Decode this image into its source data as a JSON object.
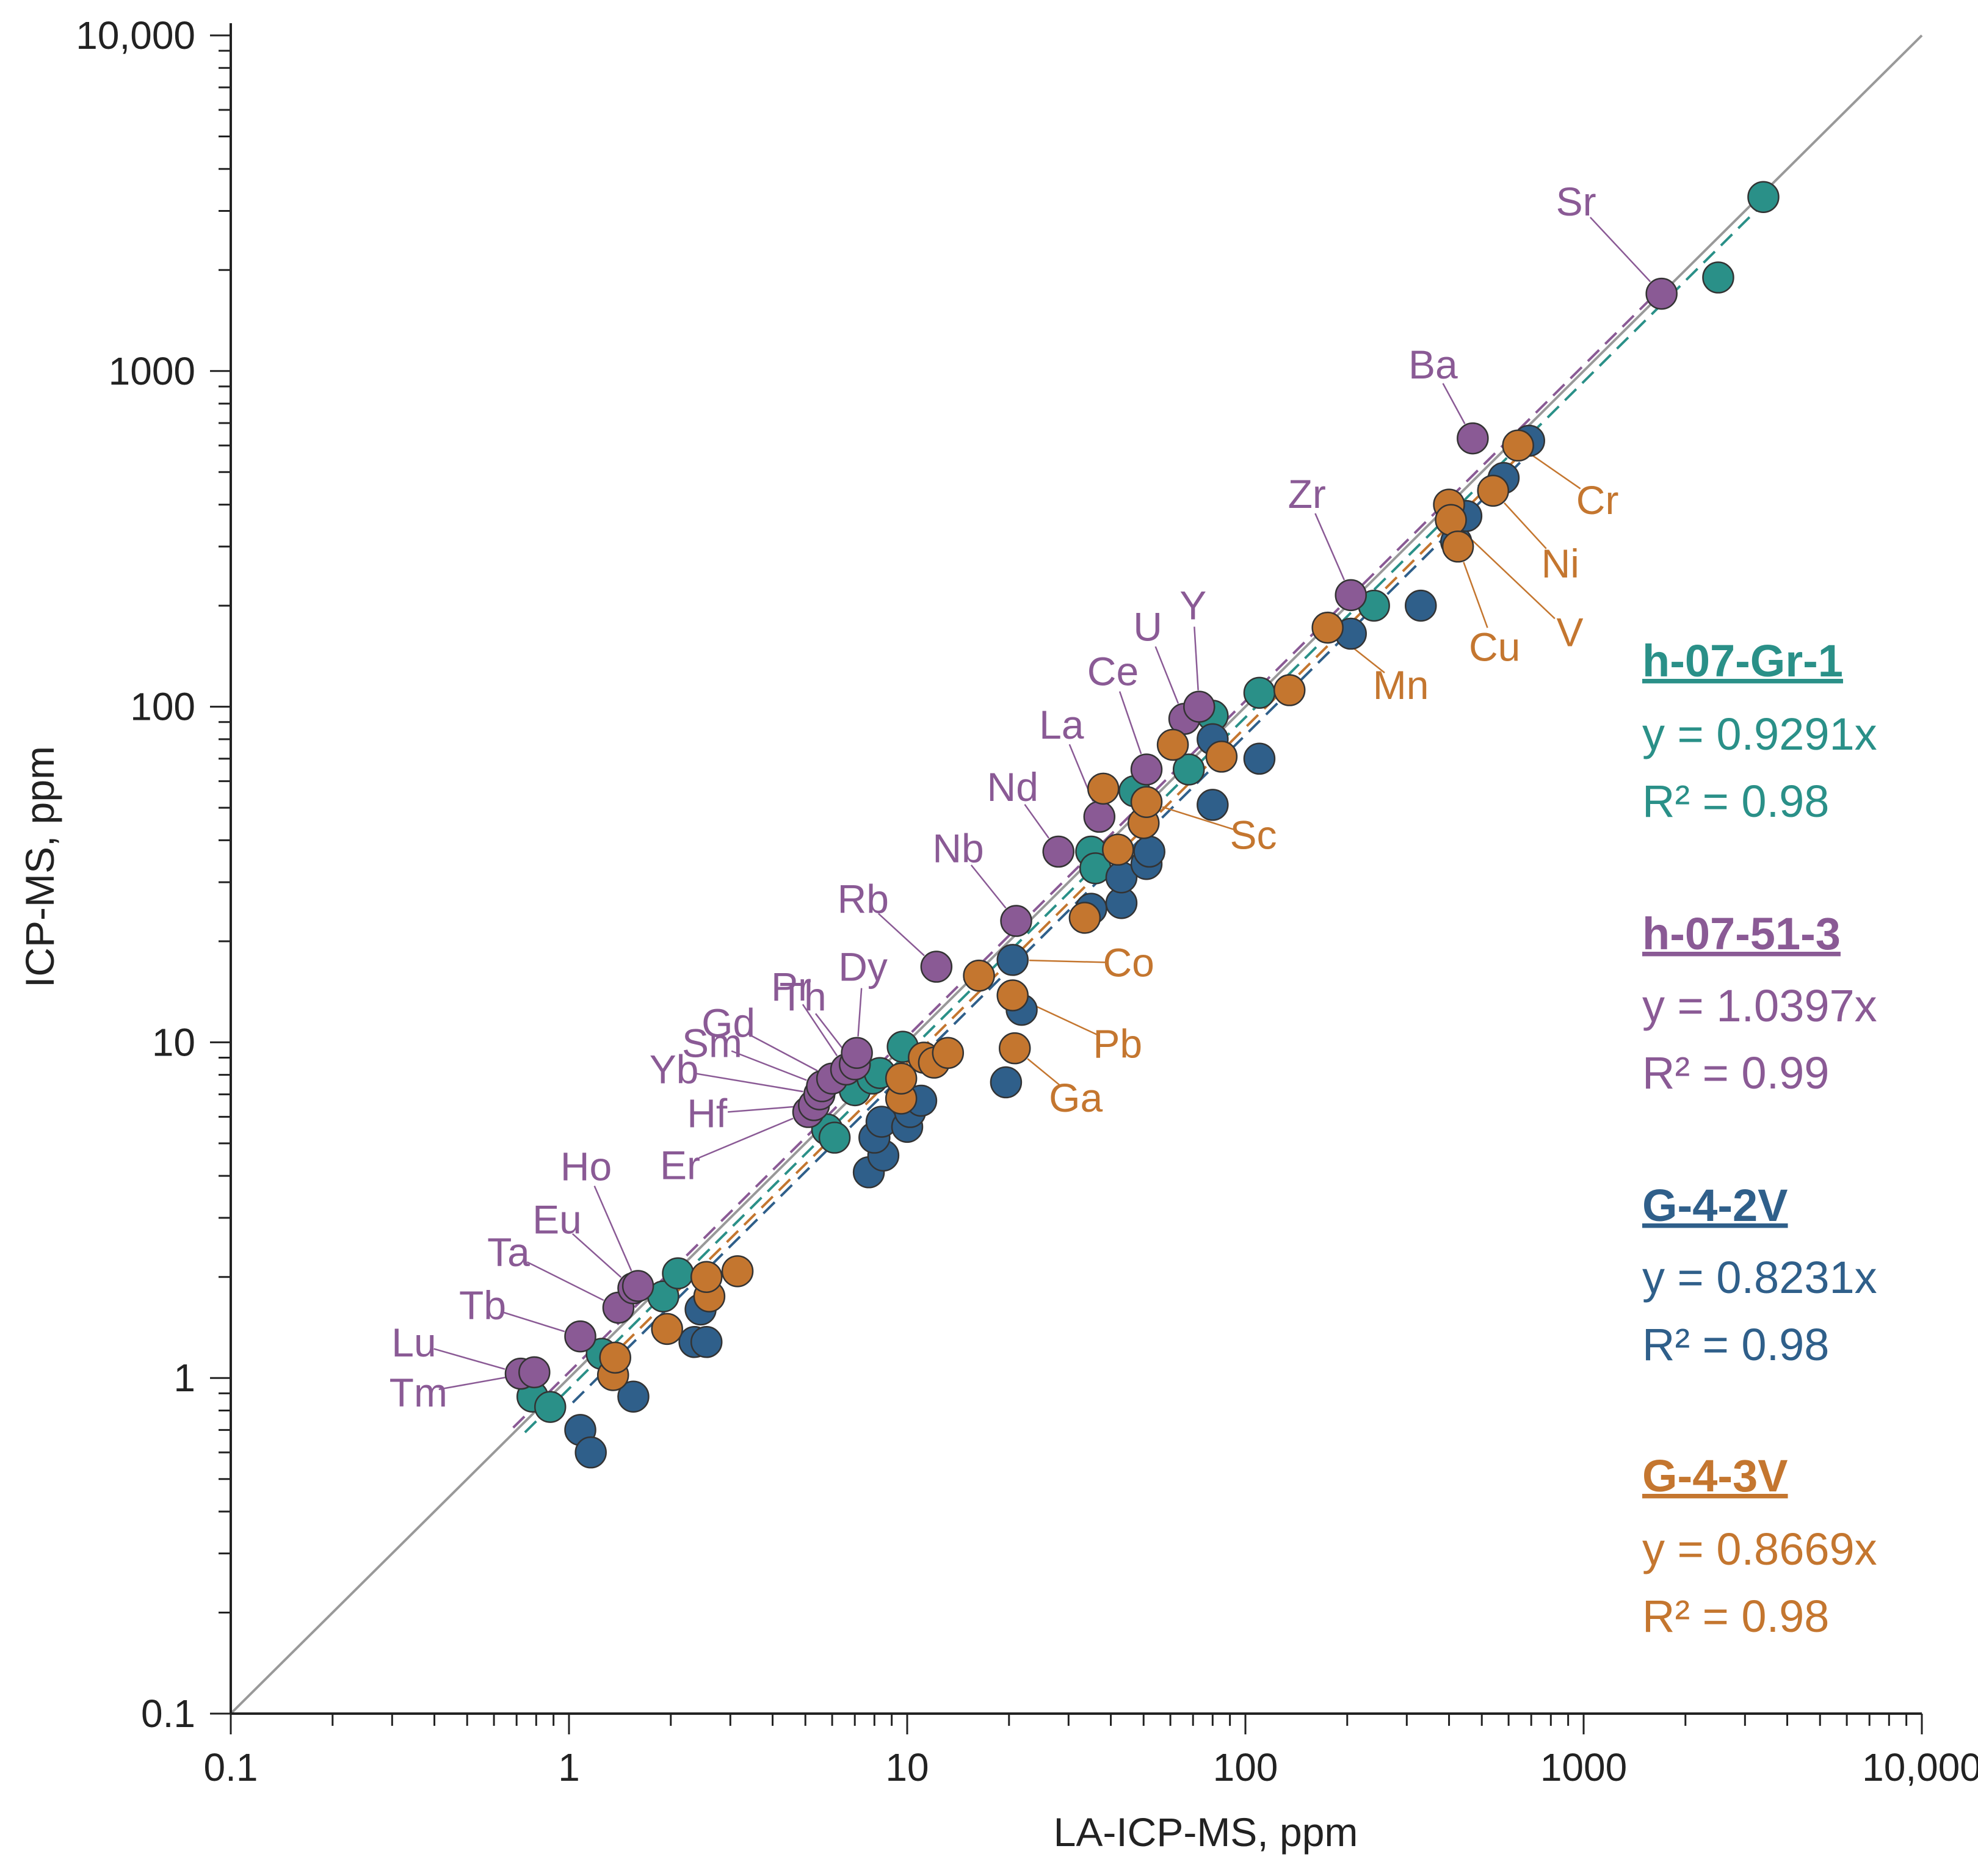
{
  "chart_data": {
    "type": "scatter",
    "xlabel": "LA-ICP-MS, ppm",
    "ylabel": "ICP-MS, ppm",
    "xscale": "log",
    "yscale": "log",
    "xlim": [
      0.1,
      10000
    ],
    "ylim": [
      0.1,
      10000
    ],
    "grid": false,
    "legend_placement": "right",
    "x_tick_labels": [
      "0.1",
      "1",
      "10",
      "100",
      "1000",
      "10,000"
    ],
    "y_tick_labels": [
      "0.1",
      "1",
      "10",
      "100",
      "1000",
      "10,000"
    ],
    "reference_line": {
      "slope": 1,
      "color": "#999999"
    },
    "series": [
      {
        "name": "h-07-Gr-1",
        "equation": "y = 0.9291x",
        "r2": "R² = 0.98",
        "slope": 0.9291,
        "color": "#2a9088",
        "points": [
          [
            0.78,
            0.88
          ],
          [
            0.88,
            0.82
          ],
          [
            1.25,
            1.18
          ],
          [
            1.9,
            1.75
          ],
          [
            2.1,
            2.05
          ],
          [
            5.8,
            5.5
          ],
          [
            6.1,
            5.2
          ],
          [
            7.0,
            7.2
          ],
          [
            7.9,
            7.8
          ],
          [
            8.3,
            8.1
          ],
          [
            9.7,
            9.7
          ],
          [
            35,
            37
          ],
          [
            36,
            33
          ],
          [
            47,
            56
          ],
          [
            68,
            65
          ],
          [
            80,
            94
          ],
          [
            110,
            110
          ],
          [
            240,
            200
          ],
          [
            2500,
            1900
          ],
          [
            3400,
            3300
          ]
        ]
      },
      {
        "name": "h-07-51-3",
        "equation": "y = 1.0397x",
        "r2": "R² = 0.99",
        "slope": 1.0397,
        "color": "#8a5a95",
        "points": [
          [
            0.72,
            1.03
          ],
          [
            0.79,
            1.04
          ],
          [
            1.08,
            1.33
          ],
          [
            1.4,
            1.62
          ],
          [
            1.55,
            1.85
          ],
          [
            1.6,
            1.88
          ],
          [
            5.1,
            6.2
          ],
          [
            5.3,
            6.5
          ],
          [
            5.5,
            7.0
          ],
          [
            5.6,
            7.4
          ],
          [
            6.0,
            7.8
          ],
          [
            6.6,
            8.3
          ],
          [
            7.0,
            8.6
          ],
          [
            7.1,
            9.3
          ],
          [
            12.2,
            16.8
          ],
          [
            21,
            23
          ],
          [
            28,
            37
          ],
          [
            37,
            47
          ],
          [
            51,
            65
          ],
          [
            66,
            92
          ],
          [
            73,
            100
          ],
          [
            205,
            215
          ],
          [
            470,
            630
          ],
          [
            1700,
            1700
          ]
        ]
      },
      {
        "name": "G-4-2V",
        "equation": "y = 0.8231x",
        "r2": "R² = 0.98",
        "slope": 0.8231,
        "color": "#2f5f8a",
        "points": [
          [
            1.08,
            0.7
          ],
          [
            1.16,
            0.6
          ],
          [
            1.55,
            0.88
          ],
          [
            2.35,
            1.28
          ],
          [
            2.55,
            1.28
          ],
          [
            2.45,
            1.6
          ],
          [
            7.7,
            4.1
          ],
          [
            8.5,
            4.6
          ],
          [
            8.0,
            5.2
          ],
          [
            8.4,
            5.8
          ],
          [
            10.0,
            5.6
          ],
          [
            10.2,
            6.2
          ],
          [
            11.0,
            6.7
          ],
          [
            19.6,
            7.6
          ],
          [
            21.8,
            12.5
          ],
          [
            20.5,
            17.6
          ],
          [
            35,
            25
          ],
          [
            43,
            26
          ],
          [
            43,
            31
          ],
          [
            51,
            34
          ],
          [
            52,
            37
          ],
          [
            80,
            51
          ],
          [
            80,
            80
          ],
          [
            110,
            70
          ],
          [
            205,
            165
          ],
          [
            330,
            200
          ],
          [
            420,
            310
          ],
          [
            450,
            370
          ],
          [
            580,
            480
          ],
          [
            690,
            620
          ]
        ]
      },
      {
        "name": "G-4-3V",
        "equation": "y = 0.8669x",
        "r2": "R² = 0.98",
        "slope": 0.8669,
        "color": "#c4762f",
        "points": [
          [
            1.35,
            1.02
          ],
          [
            1.37,
            1.15
          ],
          [
            1.95,
            1.4
          ],
          [
            2.6,
            1.75
          ],
          [
            2.55,
            2.0
          ],
          [
            3.15,
            2.08
          ],
          [
            9.6,
            6.8
          ],
          [
            9.6,
            7.8
          ],
          [
            11.2,
            9.0
          ],
          [
            12.0,
            8.7
          ],
          [
            13.2,
            9.3
          ],
          [
            20.8,
            9.6
          ],
          [
            20.5,
            13.8
          ],
          [
            16.3,
            15.8
          ],
          [
            33.5,
            23.5
          ],
          [
            42,
            37.5
          ],
          [
            38,
            57
          ],
          [
            50,
            45
          ],
          [
            51,
            52
          ],
          [
            61,
            77
          ],
          [
            85,
            71
          ],
          [
            135,
            112
          ],
          [
            175,
            172
          ],
          [
            400,
            400
          ],
          [
            405,
            360
          ],
          [
            425,
            300
          ],
          [
            540,
            440
          ],
          [
            640,
            600
          ]
        ]
      }
    ],
    "annotations": [
      {
        "text": "Sr",
        "color_key": 1,
        "point": [
          1700,
          1700
        ]
      },
      {
        "text": "Ba",
        "color_key": 1,
        "point": [
          470,
          630
        ]
      },
      {
        "text": "Zr",
        "color_key": 1,
        "point": [
          205,
          215
        ]
      },
      {
        "text": "U",
        "color_key": 1,
        "point": [
          66,
          92
        ]
      },
      {
        "text": "Y",
        "color_key": 1,
        "point": [
          73,
          100
        ]
      },
      {
        "text": "Ce",
        "color_key": 1,
        "point": [
          51,
          65
        ]
      },
      {
        "text": "La",
        "color_key": 1,
        "point": [
          37,
          47
        ]
      },
      {
        "text": "Nd",
        "color_key": 1,
        "point": [
          28,
          37
        ]
      },
      {
        "text": "Nb",
        "color_key": 1,
        "point": [
          21,
          23
        ]
      },
      {
        "text": "Rb",
        "color_key": 1,
        "point": [
          12.2,
          16.8
        ]
      },
      {
        "text": "Pr",
        "color_key": 1,
        "point": [
          6.6,
          8.3
        ]
      },
      {
        "text": "Dy",
        "color_key": 1,
        "point": [
          7.1,
          9.3
        ]
      },
      {
        "text": "Gd",
        "color_key": 1,
        "point": [
          6.0,
          7.8
        ]
      },
      {
        "text": "Th",
        "color_key": 1,
        "point": [
          7.0,
          8.6
        ]
      },
      {
        "text": "Sm",
        "color_key": 1,
        "point": [
          5.6,
          7.4
        ]
      },
      {
        "text": "Yb",
        "color_key": 1,
        "point": [
          5.5,
          7.0
        ]
      },
      {
        "text": "Hf",
        "color_key": 1,
        "point": [
          5.3,
          6.5
        ]
      },
      {
        "text": "Er",
        "color_key": 1,
        "point": [
          5.1,
          6.2
        ]
      },
      {
        "text": "Ho",
        "color_key": 1,
        "point": [
          1.6,
          1.88
        ]
      },
      {
        "text": "Eu",
        "color_key": 1,
        "point": [
          1.55,
          1.85
        ]
      },
      {
        "text": "Ta",
        "color_key": 1,
        "point": [
          1.4,
          1.62
        ]
      },
      {
        "text": "Tb",
        "color_key": 1,
        "point": [
          1.08,
          1.33
        ]
      },
      {
        "text": "Lu",
        "color_key": 1,
        "point": [
          0.72,
          1.03
        ]
      },
      {
        "text": "Tm",
        "color_key": 1,
        "point": [
          0.79,
          1.04
        ]
      },
      {
        "text": "Cr",
        "color_key": 3,
        "point": [
          640,
          600
        ]
      },
      {
        "text": "Ni",
        "color_key": 3,
        "point": [
          540,
          440
        ]
      },
      {
        "text": "Cu",
        "color_key": 3,
        "point": [
          425,
          300
        ]
      },
      {
        "text": "V",
        "color_key": 3,
        "point": [
          405,
          360
        ]
      },
      {
        "text": "Mn",
        "color_key": 3,
        "point": [
          175,
          172
        ]
      },
      {
        "text": "Sc",
        "color_key": 3,
        "point": [
          51,
          52
        ]
      },
      {
        "text": "Co",
        "color_key": 3,
        "point": [
          20.5,
          17.6
        ]
      },
      {
        "text": "Pb",
        "color_key": 3,
        "point": [
          20.5,
          13.8
        ]
      },
      {
        "text": "Ga",
        "color_key": 3,
        "point": [
          20.8,
          9.6
        ]
      }
    ]
  }
}
